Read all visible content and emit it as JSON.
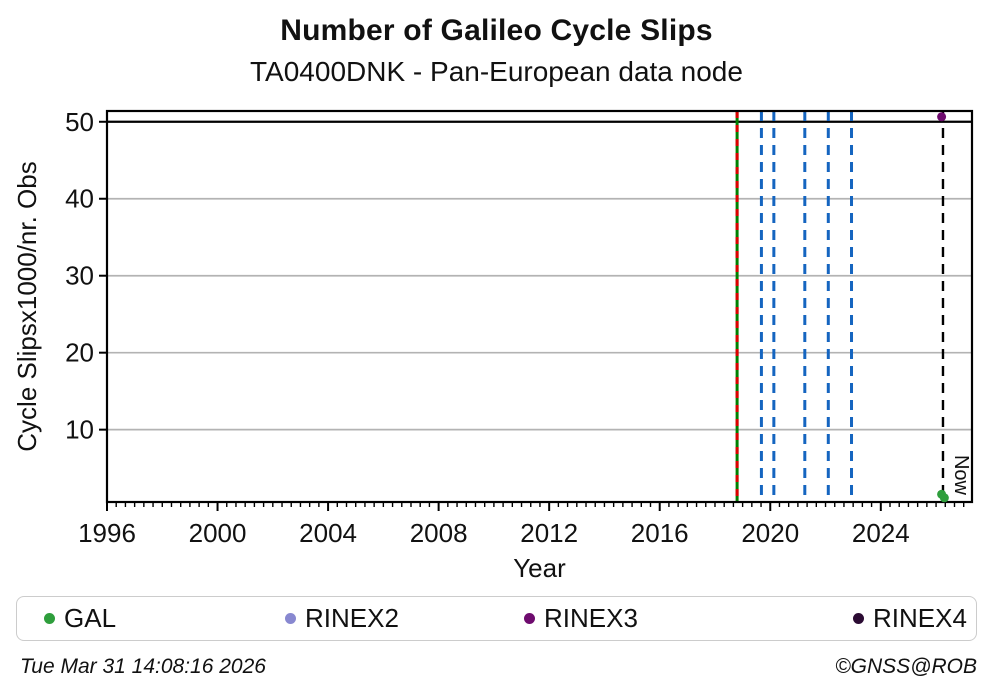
{
  "header": {
    "title": "Number of Galileo Cycle Slips",
    "subtitle": "TA0400DNK - Pan-European data node"
  },
  "footer": {
    "timestamp": "Tue Mar 31 14:08:16 2026",
    "credit": "©GNSS@ROB"
  },
  "legend": [
    {
      "label": "GAL",
      "color": "#2e9e3c"
    },
    {
      "label": "RINEX2",
      "color": "#8888d0"
    },
    {
      "label": "RINEX3",
      "color": "#6e0b6e"
    },
    {
      "label": "RINEX4",
      "color": "#2b0b33"
    }
  ],
  "chart_data": {
    "type": "scatter",
    "title": "Number of Galileo Cycle Slips",
    "subtitle": "TA0400DNK - Pan-European data node",
    "xlabel": "Year",
    "ylabel": "Cycle Slipsx1000/nr. Obs",
    "xlim": [
      1996,
      2027.3
    ],
    "ylim": [
      0.6,
      51.4
    ],
    "xticks": [
      1996,
      2000,
      2004,
      2008,
      2012,
      2016,
      2020,
      2024
    ],
    "yticks": [
      10,
      20,
      30,
      40,
      50
    ],
    "x_minor_tick_step_years": 0.33333,
    "grid": {
      "axis": "y",
      "color": "#b3b3b3"
    },
    "threshold_line_y": 50,
    "series": [
      {
        "name": "GAL",
        "color": "#2e9e3c",
        "points": [
          {
            "x": 2026.2,
            "y": 1.6
          },
          {
            "x": 2026.3,
            "y": 1.15
          }
        ]
      },
      {
        "name": "RINEX2",
        "color": "#8888d0",
        "points": []
      },
      {
        "name": "RINEX3",
        "color": "#6e0b6e",
        "points": [
          {
            "x": 2026.2,
            "y": 50.65
          }
        ]
      },
      {
        "name": "RINEX4",
        "color": "#2b0b33",
        "points": []
      }
    ],
    "event_lines": [
      {
        "x": 2018.8,
        "style": "solid-with-dash-overlay",
        "color": "#008000",
        "overlay_color": "#dd0000"
      },
      {
        "x": 2019.68,
        "style": "dashed",
        "color": "#1565c0"
      },
      {
        "x": 2020.13,
        "style": "dashed",
        "color": "#1565c0"
      },
      {
        "x": 2021.25,
        "style": "dashed",
        "color": "#1565c0"
      },
      {
        "x": 2022.1,
        "style": "dashed",
        "color": "#1565c0"
      },
      {
        "x": 2022.94,
        "style": "dashed",
        "color": "#1565c0"
      }
    ],
    "now_line": {
      "x": 2026.25,
      "label": "Now",
      "color": "#000000",
      "style": "dashed"
    },
    "legend_position": "bottom",
    "legend_entries": [
      "GAL",
      "RINEX2",
      "RINEX3",
      "RINEX4"
    ]
  }
}
